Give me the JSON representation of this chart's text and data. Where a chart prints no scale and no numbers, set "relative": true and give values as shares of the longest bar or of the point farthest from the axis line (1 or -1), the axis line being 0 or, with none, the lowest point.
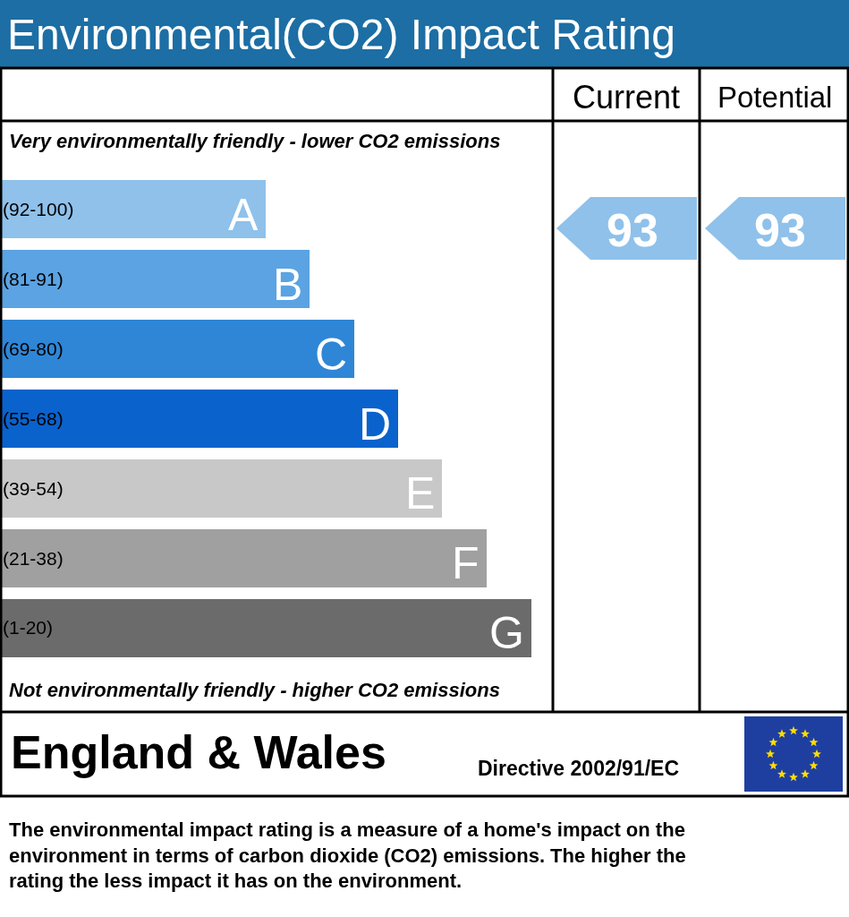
{
  "chart_data": {
    "type": "bar",
    "orientation": "horizontal",
    "relative": true,
    "title": "Environmental(CO2) Impact Rating",
    "categories": [
      "(92-100)",
      "(81-91)",
      "(69-80)",
      "(55-68)",
      "(39-54)",
      "(21-38)",
      "(1-20)"
    ],
    "values": [
      0.5,
      0.583,
      0.667,
      0.749,
      0.832,
      0.916,
      1
    ],
    "colors": [
      "#8fc1ea",
      "#5ba3e2",
      "#2f86d6",
      "#0a62cc",
      "#c8c8c8",
      "#a0a0a0",
      "#6b6b6b"
    ],
    "annotations": [
      {
        "text": "A",
        "x": 0.5,
        "y": "(92-100)"
      },
      {
        "text": "B",
        "x": 0.583,
        "y": "(81-91)"
      },
      {
        "text": "C",
        "x": 0.667,
        "y": "(69-80)"
      },
      {
        "text": "D",
        "x": 0.749,
        "y": "(55-68)"
      },
      {
        "text": "E",
        "x": 0.832,
        "y": "(39-54)"
      },
      {
        "text": "F",
        "x": 0.916,
        "y": "(21-38)"
      },
      {
        "text": "G",
        "x": 1,
        "y": "(1-20)"
      },
      "Very environmentally friendly - lower CO2 emissions",
      "Not environmentally friendly - higher CO2 emissions",
      "Current",
      "Potential",
      "93",
      "93",
      "England & Wales",
      "Directive 2002/91/EC",
      "The environmental impact rating is a measure of a home's impact on the environment in terms of carbon dioxide (CO2) emissions. The higher the rating the less impact it has on the environment."
    ]
  }
}
